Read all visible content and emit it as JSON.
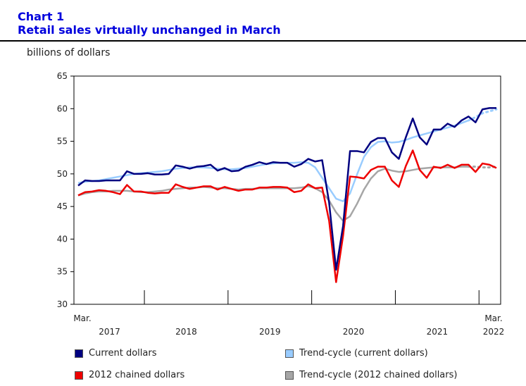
{
  "header": {
    "chart_number": "Chart 1",
    "title": "Retail sales virtually unchanged in March"
  },
  "units_label": "billions of dollars",
  "colors": {
    "current": "#000080",
    "trend_current": "#99ccff",
    "chained": "#ee0000",
    "trend_chained": "#a6a6a6",
    "title": "#0000dd"
  },
  "chart_data": {
    "type": "line",
    "title": "Retail sales virtually unchanged in March",
    "ylabel": "billions of dollars",
    "ylim": [
      30,
      65
    ],
    "yticks": [
      30,
      35,
      40,
      45,
      50,
      55,
      60,
      65
    ],
    "start_label": "Mar.",
    "end_label": "Mar.",
    "year_labels": [
      "2017",
      "2018",
      "2019",
      "2020",
      "2021",
      "2022"
    ],
    "x_months": 61,
    "series": [
      {
        "name": "Current dollars",
        "color": "#000080",
        "values": [
          48.2,
          49.0,
          48.9,
          48.9,
          49.0,
          49.0,
          49.0,
          50.4,
          50.0,
          50.0,
          50.1,
          49.9,
          49.9,
          50.0,
          51.3,
          51.1,
          50.8,
          51.1,
          51.2,
          51.4,
          50.5,
          50.9,
          50.4,
          50.5,
          51.1,
          51.4,
          51.8,
          51.5,
          51.8,
          51.7,
          51.7,
          51.1,
          51.5,
          52.3,
          51.9,
          52.1,
          45.6,
          35.3,
          42.0,
          53.5,
          53.5,
          53.3,
          54.9,
          55.5,
          55.5,
          53.3,
          52.3,
          55.6,
          58.5,
          55.6,
          54.5,
          56.8,
          56.8,
          57.7,
          57.2,
          58.2,
          58.8,
          57.9,
          59.9,
          60.1,
          60.1
        ]
      },
      {
        "name": "Trend-cycle (current dollars)",
        "color": "#99ccff",
        "dotted_from": 56,
        "values": [
          48.6,
          48.8,
          48.9,
          49.0,
          49.2,
          49.4,
          49.6,
          49.8,
          50.0,
          50.1,
          50.2,
          50.3,
          50.4,
          50.6,
          50.8,
          50.9,
          51.0,
          51.0,
          51.0,
          50.9,
          50.8,
          50.7,
          50.7,
          50.8,
          50.9,
          51.1,
          51.3,
          51.5,
          51.6,
          51.7,
          51.7,
          51.7,
          51.8,
          51.7,
          51.0,
          49.4,
          47.8,
          46.2,
          45.8,
          47.0,
          49.9,
          52.6,
          54.1,
          54.9,
          55.0,
          54.8,
          54.9,
          55.2,
          55.6,
          55.9,
          56.2,
          56.5,
          56.8,
          57.1,
          57.4,
          57.8,
          58.2,
          58.7,
          59.3,
          59.6,
          59.9
        ]
      },
      {
        "name": "2012 chained dollars",
        "color": "#ee0000",
        "values": [
          46.7,
          47.2,
          47.3,
          47.5,
          47.4,
          47.2,
          46.9,
          48.3,
          47.3,
          47.3,
          47.1,
          47.0,
          47.1,
          47.1,
          48.4,
          48.0,
          47.7,
          47.9,
          48.1,
          48.1,
          47.6,
          48.0,
          47.7,
          47.4,
          47.6,
          47.6,
          47.9,
          47.9,
          48.0,
          48.0,
          47.9,
          47.2,
          47.4,
          48.4,
          47.8,
          47.9,
          42.8,
          33.4,
          40.5,
          49.6,
          49.5,
          49.3,
          50.6,
          51.1,
          51.1,
          49.0,
          48.0,
          51.2,
          53.6,
          50.6,
          49.4,
          51.1,
          50.9,
          51.4,
          50.9,
          51.4,
          51.4,
          50.3,
          51.6,
          51.4,
          50.9
        ]
      },
      {
        "name": "Trend-cycle (2012 chained dollars)",
        "color": "#a6a6a6",
        "dotted_from": 56,
        "values": [
          46.7,
          47.0,
          47.2,
          47.3,
          47.3,
          47.4,
          47.4,
          47.4,
          47.3,
          47.2,
          47.2,
          47.3,
          47.4,
          47.6,
          47.7,
          47.8,
          47.9,
          47.9,
          48.0,
          47.9,
          47.8,
          47.8,
          47.7,
          47.6,
          47.7,
          47.7,
          47.8,
          47.8,
          47.8,
          47.8,
          47.8,
          47.8,
          47.9,
          48.1,
          47.8,
          47.2,
          45.9,
          44.1,
          42.8,
          43.5,
          45.4,
          47.6,
          49.3,
          50.4,
          50.8,
          50.5,
          50.3,
          50.4,
          50.6,
          50.8,
          50.9,
          51.0,
          51.0,
          51.0,
          51.0,
          51.1,
          51.1,
          51.1,
          51.0,
          51.0,
          51.1
        ]
      }
    ],
    "legend": [
      {
        "label": "Current dollars",
        "color": "#000080"
      },
      {
        "label": "Trend-cycle (current dollars)",
        "color": "#99ccff"
      },
      {
        "label": "2012 chained dollars",
        "color": "#ee0000"
      },
      {
        "label": "Trend-cycle (2012 chained dollars)",
        "color": "#a6a6a6"
      }
    ]
  }
}
